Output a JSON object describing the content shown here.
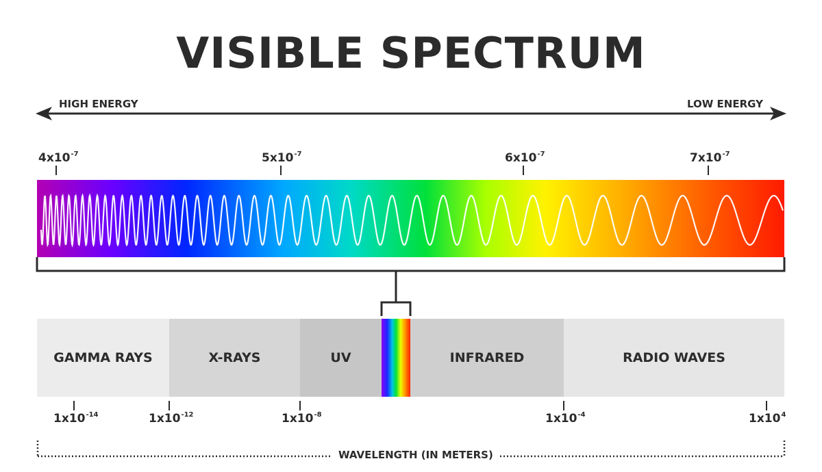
{
  "title": "VISIBLE SPECTRUM",
  "energy": {
    "high": "HIGH ENERGY",
    "low": "LOW ENERGY"
  },
  "visible_ticks": [
    {
      "mantissa": "4x10",
      "exp": "-7"
    },
    {
      "mantissa": "5x10",
      "exp": "-7"
    },
    {
      "mantissa": "6x10",
      "exp": "-7"
    },
    {
      "mantissa": "7x10",
      "exp": "-7"
    }
  ],
  "bands": [
    {
      "label": "GAMMA RAYS",
      "color": "#ececec"
    },
    {
      "label": "X-RAYS",
      "color": "#d6d6d6"
    },
    {
      "label": "UV",
      "color": "#c6c6c6"
    },
    {
      "label": "INFRARED",
      "color": "#cfcfcf"
    },
    {
      "label": "RADIO WAVES",
      "color": "#e6e6e6"
    }
  ],
  "em_ticks": [
    {
      "mantissa": "1x10",
      "exp": "-14"
    },
    {
      "mantissa": "1x10",
      "exp": "-12"
    },
    {
      "mantissa": "1x10",
      "exp": "-8"
    },
    {
      "mantissa": "1x10",
      "exp": "-4"
    },
    {
      "mantissa": "1x10",
      "exp": "4"
    }
  ],
  "axis_label": "WAVELENGTH (IN METERS)",
  "colors": {
    "text": "#2b2b2b",
    "spectrum": [
      "#b300b3",
      "#6a00ff",
      "#0026ff",
      "#00a8ff",
      "#00d9c8",
      "#00e03a",
      "#a8ff00",
      "#fff200",
      "#ffb000",
      "#ff5a00",
      "#ff1a00"
    ]
  }
}
